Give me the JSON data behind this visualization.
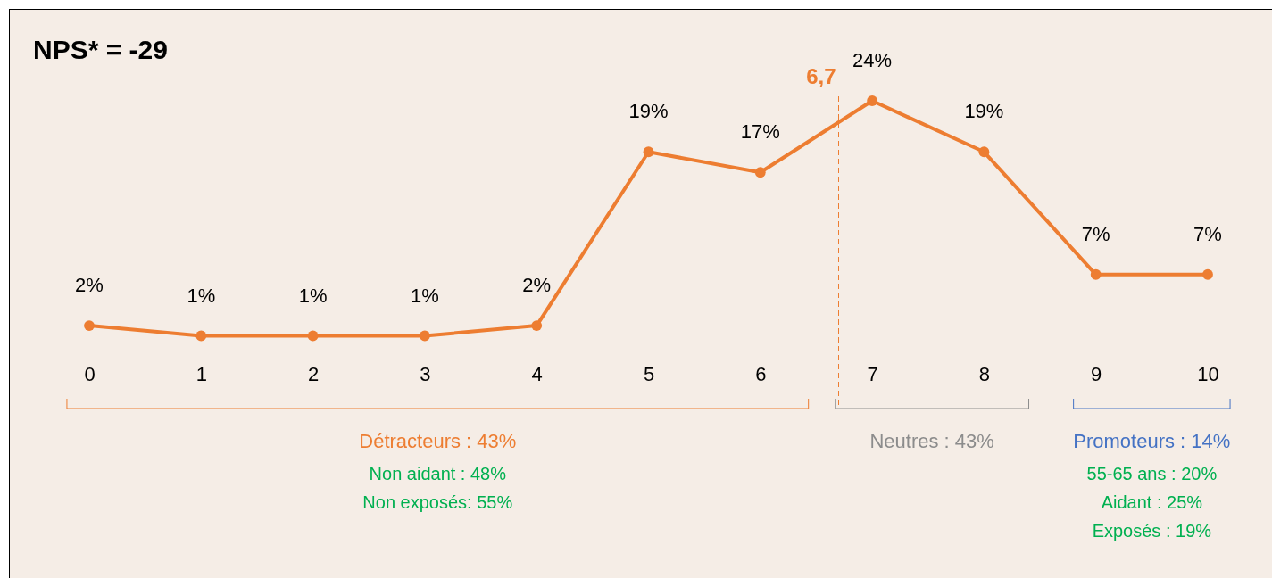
{
  "chart_data": {
    "type": "line",
    "title": "NPS* = -29",
    "x": [
      0,
      1,
      2,
      3,
      4,
      5,
      6,
      7,
      8,
      9,
      10
    ],
    "xlim": [
      0,
      10
    ],
    "xticks": [
      0,
      1,
      2,
      3,
      4,
      5,
      6,
      7,
      8,
      9,
      10
    ],
    "series": [
      {
        "color": "#ed7d31",
        "values": [
          2,
          1,
          1,
          1,
          2,
          19,
          17,
          24,
          19,
          7,
          7
        ],
        "value_labels": [
          "2%",
          "1%",
          "1%",
          "1%",
          "2%",
          "19%",
          "17%",
          "24%",
          "19%",
          "7%",
          "7%"
        ]
      }
    ],
    "marker": "circle",
    "line_style": "solid",
    "tick_labels": "x",
    "ref_lines": [
      {
        "axis": "x",
        "value": 6.7,
        "label": "6,7",
        "color": "#ed7d31",
        "line_style": "dashed"
      }
    ],
    "annotations": [
      "Détracteurs : 43%",
      "Non aidant : 48%",
      "Non exposés: 55%",
      "Neutres : 43%",
      "Promoteurs : 14%",
      "55-65 ans : 20%",
      "Aidant : 25%",
      "Exposés : 19%"
    ]
  }
}
